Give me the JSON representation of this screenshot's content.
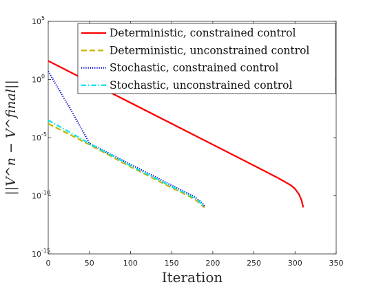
{
  "chart_data": {
    "type": "line",
    "title": "",
    "xlabel": "Iteration",
    "ylabel": "||V^n − V^final||",
    "xlim": [
      0,
      350
    ],
    "ylim_log10": [
      -15,
      5
    ],
    "y_scale": "log",
    "x_ticks": [
      "0",
      "50",
      "100",
      "150",
      "200",
      "250",
      "300",
      "350"
    ],
    "y_ticks": [
      {
        "base": "10",
        "exp": "-15"
      },
      {
        "base": "10",
        "exp": "-10"
      },
      {
        "base": "10",
        "exp": "-5"
      },
      {
        "base": "10",
        "exp": "0"
      },
      {
        "base": "10",
        "exp": "5"
      }
    ],
    "legend_position": "top-right",
    "grid": false,
    "series": [
      {
        "name": "Deterministic, constrained control",
        "color": "#ff0000",
        "dash": "solid",
        "x": [
          0,
          50,
          100,
          150,
          200,
          250,
          280,
          295,
          300,
          305,
          308,
          310
        ],
        "log10_y": [
          1.6,
          -0.2,
          -2.0,
          -3.8,
          -5.6,
          -7.4,
          -8.5,
          -9.1,
          -9.4,
          -9.9,
          -10.4,
          -11.0
        ]
      },
      {
        "name": "Deterministic, unconstrained control",
        "color": "#c8b400",
        "dash": "dashed",
        "x": [
          0,
          25,
          50,
          100,
          150,
          170,
          180,
          185,
          188,
          190
        ],
        "log10_y": [
          -3.8,
          -4.7,
          -5.6,
          -7.5,
          -9.3,
          -10.0,
          -10.4,
          -10.7,
          -10.9,
          -11.0
        ]
      },
      {
        "name": "Stochastic, constrained control",
        "color": "#0000cc",
        "dash": "dotted",
        "x": [
          0,
          25,
          48,
          50,
          100,
          150,
          170,
          180,
          185,
          188,
          190
        ],
        "log10_y": [
          0.7,
          -2.3,
          -5.2,
          -5.5,
          -7.3,
          -9.1,
          -9.8,
          -10.2,
          -10.5,
          -10.7,
          -10.9
        ]
      },
      {
        "name": "Stochastic, unconstrained control",
        "color": "#00e5ee",
        "dash": "dashdot",
        "x": [
          0,
          25,
          50,
          100,
          150,
          170,
          180,
          185,
          188,
          190
        ],
        "log10_y": [
          -3.5,
          -4.5,
          -5.5,
          -7.4,
          -9.2,
          -9.9,
          -10.3,
          -10.6,
          -10.8,
          -11.0
        ]
      }
    ]
  }
}
